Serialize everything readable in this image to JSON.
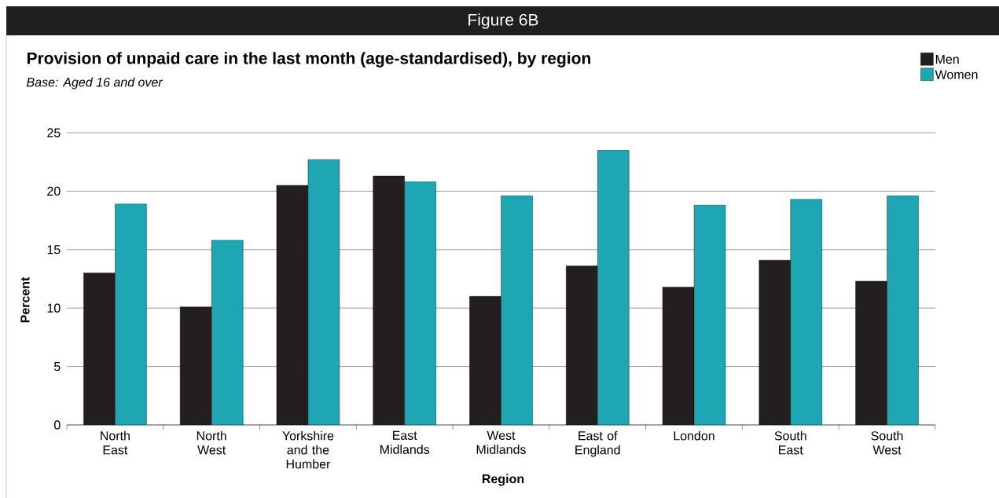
{
  "chart_data": {
    "type": "bar",
    "title": "Provision of unpaid care in the last month (age-standardised), by region",
    "subtitle": "Base: Aged 16 and over",
    "annotations": [
      "Figure 6B"
    ],
    "xlabel": "Region",
    "ylabel": "Percent",
    "categories": [
      "North East",
      "North West",
      "Yorkshire and the Humber",
      "East Midlands",
      "West Midlands",
      "East of England",
      "London",
      "South East",
      "South West"
    ],
    "series": [
      {
        "name": "Men",
        "color": "#231f20",
        "values": [
          13.0,
          10.1,
          20.5,
          21.3,
          11.0,
          13.6,
          11.8,
          14.1,
          12.3
        ]
      },
      {
        "name": "Women",
        "color": "#1ea6b3",
        "values": [
          18.9,
          15.8,
          22.7,
          20.8,
          19.6,
          23.5,
          18.8,
          19.3,
          19.6
        ]
      }
    ],
    "ylim": [
      0,
      25
    ],
    "yticks": [
      0,
      5,
      10,
      15,
      20,
      25
    ],
    "grid": "y",
    "legend": "top right"
  }
}
